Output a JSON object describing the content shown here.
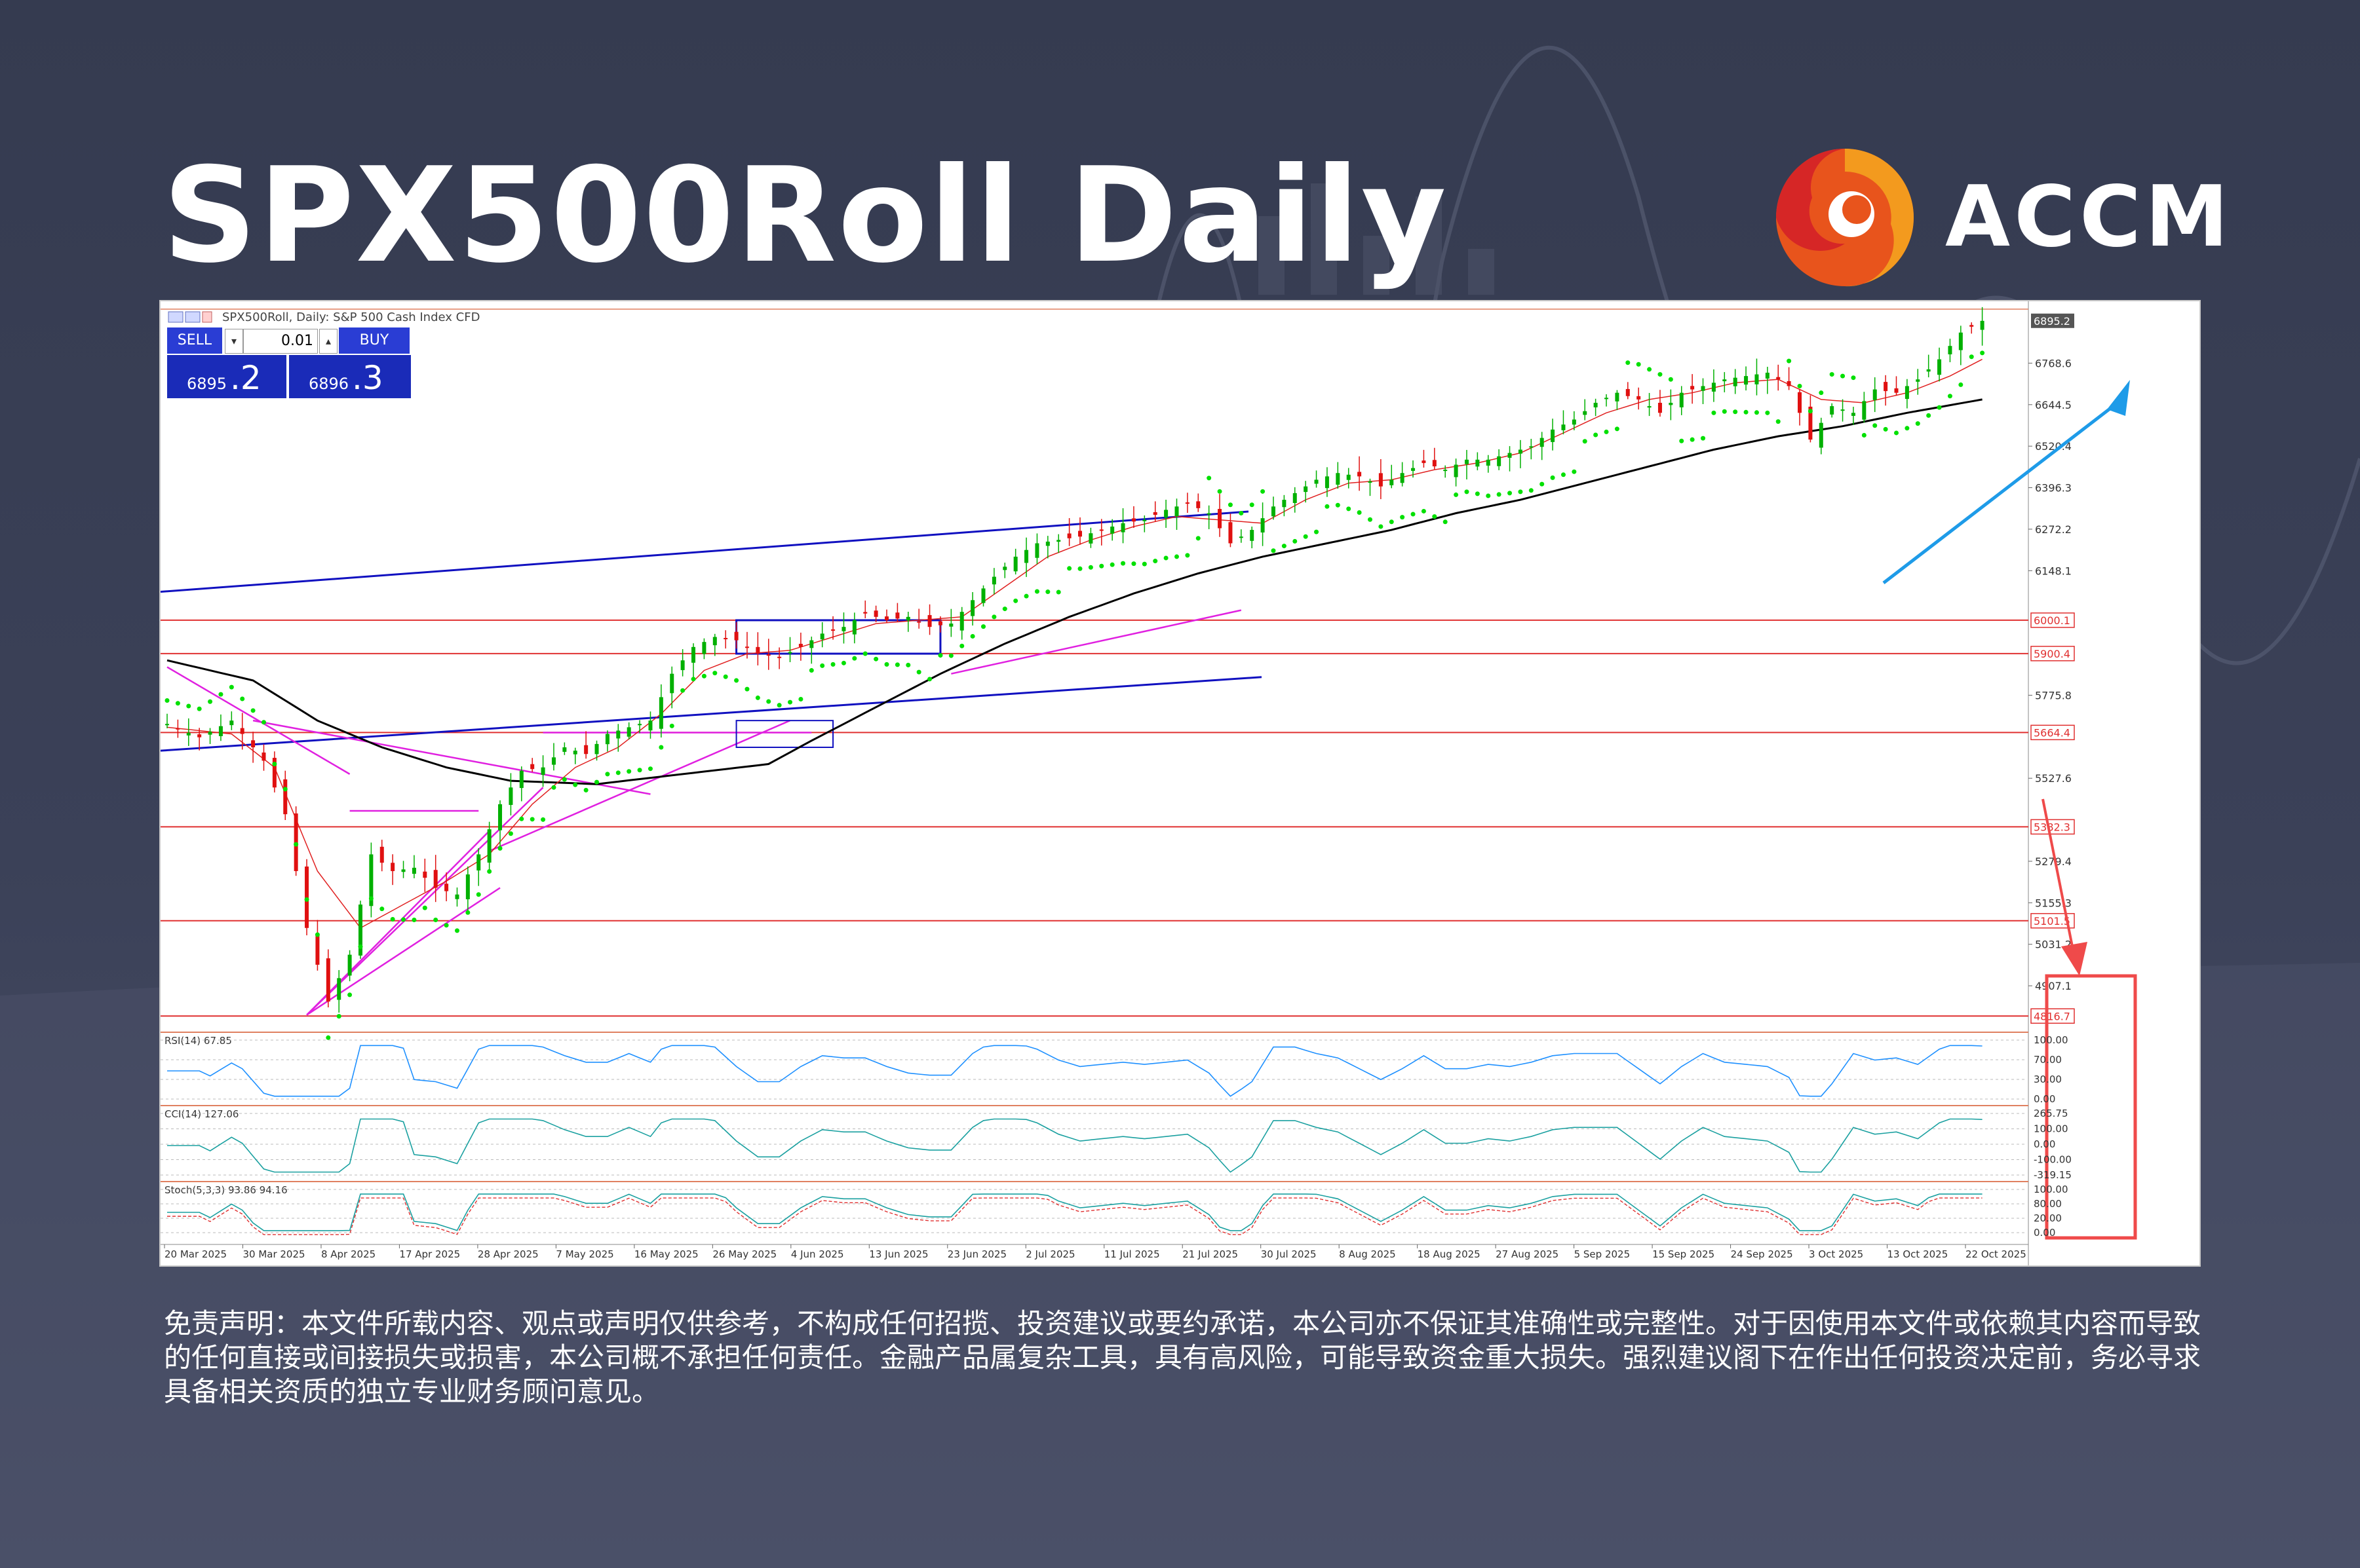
{
  "header": {
    "title": "SPX500Roll Daily",
    "brand": "ACCM"
  },
  "chart_header": {
    "symbol_line": "SPX500Roll, Daily:  S&P 500 Cash Index CFD"
  },
  "trade_panel": {
    "sell_label": "SELL",
    "buy_label": "BUY",
    "lot": "0.01",
    "sell_small": "6895",
    "sell_big": ".2",
    "buy_small": "6896",
    "buy_big": ".3"
  },
  "chart_data": {
    "type": "candlestick",
    "price_axis_ticks": [
      "6768.6",
      "6644.5",
      "6520.4",
      "6396.3",
      "6272.2",
      "6148.1",
      "5775.8",
      "5527.6",
      "5279.4",
      "5155.3",
      "5031.2",
      "4907.1"
    ],
    "current_price_label": "6895.2",
    "horizontal_levels": [
      "6000.1",
      "5900.4",
      "5664.4",
      "5382.3",
      "5101.5",
      "4816.7"
    ],
    "date_labels": [
      "20 Mar 2025",
      "30 Mar 2025",
      "8 Apr 2025",
      "17 Apr 2025",
      "28 Apr 2025",
      "7 May 2025",
      "16 May 2025",
      "26 May 2025",
      "4 Jun 2025",
      "13 Jun 2025",
      "23 Jun 2025",
      "2 Jul 2025",
      "11 Jul 2025",
      "21 Jul 2025",
      "30 Jul 2025",
      "8 Aug 2025",
      "18 Aug 2025",
      "27 Aug 2025",
      "5 Sep 2025",
      "15 Sep 2025",
      "24 Sep 2025",
      "3 Oct 2025",
      "13 Oct 2025",
      "22 Oct 2025"
    ],
    "ylim": [
      4780,
      6930
    ],
    "close_path": [
      [
        0,
        5690
      ],
      [
        3,
        5650
      ],
      [
        6,
        5700
      ],
      [
        9,
        5580
      ],
      [
        11,
        5420
      ],
      [
        13,
        5080
      ],
      [
        15,
        4860
      ],
      [
        17,
        5000
      ],
      [
        19,
        5300
      ],
      [
        21,
        5250
      ],
      [
        23,
        5260
      ],
      [
        25,
        5200
      ],
      [
        27,
        5180
      ],
      [
        29,
        5300
      ],
      [
        31,
        5450
      ],
      [
        33,
        5550
      ],
      [
        35,
        5560
      ],
      [
        37,
        5620
      ],
      [
        39,
        5600
      ],
      [
        41,
        5660
      ],
      [
        43,
        5680
      ],
      [
        45,
        5700
      ],
      [
        47,
        5840
      ],
      [
        49,
        5920
      ],
      [
        51,
        5950
      ],
      [
        53,
        5940
      ],
      [
        55,
        5900
      ],
      [
        57,
        5890
      ],
      [
        59,
        5920
      ],
      [
        61,
        5960
      ],
      [
        63,
        5980
      ],
      [
        65,
        6020
      ],
      [
        67,
        6000
      ],
      [
        69,
        6010
      ],
      [
        71,
        5980
      ],
      [
        73,
        5990
      ],
      [
        75,
        6060
      ],
      [
        77,
        6130
      ],
      [
        79,
        6190
      ],
      [
        81,
        6230
      ],
      [
        83,
        6240
      ],
      [
        85,
        6250
      ],
      [
        87,
        6270
      ],
      [
        89,
        6290
      ],
      [
        91,
        6300
      ],
      [
        93,
        6330
      ],
      [
        95,
        6350
      ],
      [
        97,
        6320
      ],
      [
        99,
        6230
      ],
      [
        101,
        6270
      ],
      [
        103,
        6340
      ],
      [
        105,
        6380
      ],
      [
        107,
        6420
      ],
      [
        109,
        6440
      ],
      [
        111,
        6430
      ],
      [
        113,
        6400
      ],
      [
        115,
        6440
      ],
      [
        117,
        6470
      ],
      [
        119,
        6450
      ],
      [
        121,
        6480
      ],
      [
        123,
        6480
      ],
      [
        125,
        6500
      ],
      [
        127,
        6520
      ],
      [
        129,
        6570
      ],
      [
        131,
        6600
      ],
      [
        133,
        6650
      ],
      [
        135,
        6680
      ],
      [
        137,
        6660
      ],
      [
        139,
        6620
      ],
      [
        141,
        6680
      ],
      [
        143,
        6700
      ],
      [
        145,
        6720
      ],
      [
        147,
        6730
      ],
      [
        149,
        6740
      ],
      [
        151,
        6700
      ],
      [
        153,
        6540
      ],
      [
        155,
        6640
      ],
      [
        157,
        6620
      ],
      [
        159,
        6690
      ],
      [
        161,
        6680
      ],
      [
        163,
        6720
      ],
      [
        165,
        6780
      ],
      [
        167,
        6860
      ],
      [
        169,
        6895
      ]
    ],
    "ma_fast": [
      [
        0,
        5680
      ],
      [
        6,
        5660
      ],
      [
        10,
        5560
      ],
      [
        14,
        5250
      ],
      [
        18,
        5080
      ],
      [
        22,
        5150
      ],
      [
        26,
        5220
      ],
      [
        30,
        5300
      ],
      [
        34,
        5450
      ],
      [
        38,
        5560
      ],
      [
        42,
        5620
      ],
      [
        46,
        5720
      ],
      [
        50,
        5850
      ],
      [
        54,
        5900
      ],
      [
        58,
        5910
      ],
      [
        62,
        5950
      ],
      [
        66,
        5990
      ],
      [
        70,
        6000
      ],
      [
        74,
        6010
      ],
      [
        78,
        6100
      ],
      [
        82,
        6190
      ],
      [
        86,
        6240
      ],
      [
        90,
        6280
      ],
      [
        94,
        6310
      ],
      [
        98,
        6300
      ],
      [
        102,
        6290
      ],
      [
        106,
        6360
      ],
      [
        110,
        6410
      ],
      [
        114,
        6420
      ],
      [
        118,
        6450
      ],
      [
        122,
        6470
      ],
      [
        126,
        6500
      ],
      [
        130,
        6560
      ],
      [
        134,
        6620
      ],
      [
        138,
        6660
      ],
      [
        142,
        6680
      ],
      [
        146,
        6710
      ],
      [
        150,
        6720
      ],
      [
        154,
        6660
      ],
      [
        158,
        6650
      ],
      [
        162,
        6680
      ],
      [
        166,
        6730
      ],
      [
        169,
        6780
      ]
    ],
    "ma_slow": [
      [
        0,
        5880
      ],
      [
        8,
        5820
      ],
      [
        14,
        5700
      ],
      [
        20,
        5620
      ],
      [
        26,
        5560
      ],
      [
        32,
        5520
      ],
      [
        40,
        5510
      ],
      [
        48,
        5540
      ],
      [
        56,
        5570
      ],
      [
        60,
        5640
      ],
      [
        66,
        5740
      ],
      [
        72,
        5840
      ],
      [
        78,
        5930
      ],
      [
        84,
        6010
      ],
      [
        90,
        6080
      ],
      [
        96,
        6140
      ],
      [
        102,
        6190
      ],
      [
        108,
        6230
      ],
      [
        114,
        6270
      ],
      [
        120,
        6320
      ],
      [
        126,
        6360
      ],
      [
        132,
        6410
      ],
      [
        138,
        6460
      ],
      [
        144,
        6510
      ],
      [
        150,
        6550
      ],
      [
        156,
        6580
      ],
      [
        162,
        6620
      ],
      [
        169,
        6660
      ]
    ],
    "indicators": [
      {
        "name": "RSI(14) 67.85",
        "levels": [
          "100.00",
          "70.00",
          "30.00",
          "0.00"
        ]
      },
      {
        "name": "CCI(14) 127.06",
        "levels": [
          "265.75",
          "100.00",
          "0.00",
          "-100.00",
          "-319.15"
        ]
      },
      {
        "name": "Stoch(5,3,3) 93.86 94.16",
        "levels": [
          "100.00",
          "80.00",
          "20.00",
          "0.00"
        ]
      }
    ]
  },
  "disclaimer": "免责声明：本文件所载内容、观点或声明仅供参考，不构成任何招揽、投资建议或要约承诺，本公司亦不保证其准确性或完整性。对于因使用本文件或依赖其内容而导致的任何直接或间接损失或损害，本公司概不承担任何责任。金融产品属复杂工具，具有高风险，可能导致资金重大损失。强烈建议阁下在作出任何投资决定前，务必寻求具备相关资质的独立专业财务顾问意见。",
  "colors": {
    "bull": "#00b000",
    "bear": "#e01010",
    "sar": "#00e000",
    "ma_fast": "#e02020",
    "ma_slow": "#000000",
    "channel": "#1010c0",
    "level": "#e03030",
    "arrow_up": "#1e9be8",
    "arrow_down": "#ef4a4a",
    "fan": "#e020e0"
  }
}
